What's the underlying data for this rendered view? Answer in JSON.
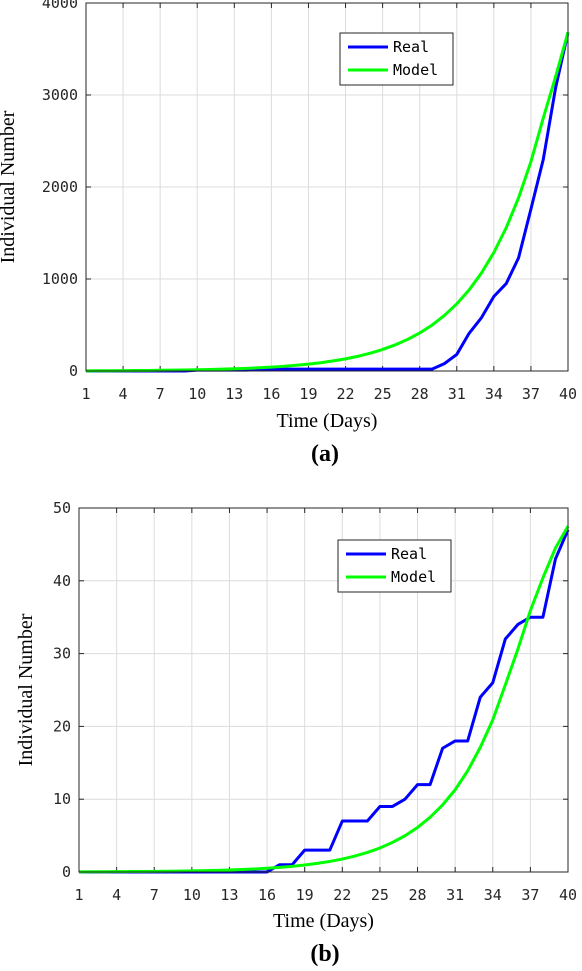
{
  "chart_data": [
    {
      "type": "line",
      "panel_label": "(a)",
      "xlabel": "Time (Days)",
      "ylabel": "Individual Number",
      "xlim": [
        1,
        40
      ],
      "ylim": [
        0,
        4000
      ],
      "xticks": [
        1,
        4,
        7,
        10,
        13,
        16,
        19,
        22,
        25,
        28,
        31,
        34,
        37,
        40
      ],
      "yticks": [
        0,
        1000,
        2000,
        3000,
        4000
      ],
      "grid": true,
      "legend": "top-right",
      "x": [
        1,
        2,
        3,
        4,
        5,
        6,
        7,
        8,
        9,
        10,
        11,
        12,
        13,
        14,
        15,
        16,
        17,
        18,
        19,
        20,
        21,
        22,
        23,
        24,
        25,
        26,
        27,
        28,
        29,
        30,
        31,
        32,
        33,
        34,
        35,
        36,
        37,
        38,
        39,
        40
      ],
      "series": [
        {
          "name": "Real",
          "color": "#0000ff",
          "values": [
            0,
            0,
            0,
            0,
            0,
            0,
            0,
            0,
            0,
            10,
            10,
            10,
            10,
            10,
            15,
            20,
            20,
            20,
            20,
            20,
            20,
            20,
            20,
            20,
            20,
            20,
            20,
            20,
            20,
            80,
            180,
            410,
            580,
            810,
            950,
            1230,
            1760,
            2300,
            3080,
            3680
          ]
        },
        {
          "name": "Model",
          "color": "#00ff00",
          "values": [
            2,
            3,
            3,
            4,
            5,
            6,
            8,
            9,
            11,
            13,
            16,
            20,
            24,
            29,
            35,
            42,
            51,
            62,
            75,
            90,
            110,
            132,
            160,
            194,
            234,
            283,
            342,
            413,
            499,
            604,
            730,
            882,
            1066,
            1288,
            1557,
            1882,
            2275,
            2750,
            3200,
            3680
          ]
        }
      ]
    },
    {
      "type": "line",
      "panel_label": "(b)",
      "xlabel": "Time (Days)",
      "ylabel": "Individual Number",
      "xlim": [
        1,
        40
      ],
      "ylim": [
        0,
        50
      ],
      "xticks": [
        1,
        4,
        7,
        10,
        13,
        16,
        19,
        22,
        25,
        28,
        31,
        34,
        37,
        40
      ],
      "yticks": [
        0,
        10,
        20,
        30,
        40,
        50
      ],
      "grid": true,
      "legend": "top-right",
      "x": [
        1,
        2,
        3,
        4,
        5,
        6,
        7,
        8,
        9,
        10,
        11,
        12,
        13,
        14,
        15,
        16,
        17,
        18,
        19,
        20,
        21,
        22,
        23,
        24,
        25,
        26,
        27,
        28,
        29,
        30,
        31,
        32,
        33,
        34,
        35,
        36,
        37,
        38,
        39,
        40
      ],
      "series": [
        {
          "name": "Real",
          "color": "#0000ff",
          "values": [
            0,
            0,
            0,
            0,
            0,
            0,
            0,
            0,
            0,
            0,
            0,
            0,
            0,
            0,
            0,
            0,
            1,
            1,
            3,
            3,
            3,
            7,
            7,
            7,
            9,
            9,
            10,
            12,
            12,
            17,
            18,
            18,
            24,
            26,
            32,
            34,
            35,
            35,
            43,
            47
          ]
        },
        {
          "name": "Model",
          "color": "#00ff00",
          "values": [
            0.02,
            0.03,
            0.04,
            0.05,
            0.06,
            0.07,
            0.08,
            0.1,
            0.12,
            0.15,
            0.19,
            0.23,
            0.28,
            0.34,
            0.42,
            0.52,
            0.64,
            0.78,
            0.96,
            1.18,
            1.45,
            1.78,
            2.19,
            2.69,
            3.3,
            4.06,
            4.98,
            6.12,
            7.51,
            9.22,
            11.3,
            13.9,
            17.1,
            20.9,
            25.7,
            30.6,
            35.9,
            40.4,
            44.5,
            47.5
          ]
        }
      ]
    }
  ]
}
